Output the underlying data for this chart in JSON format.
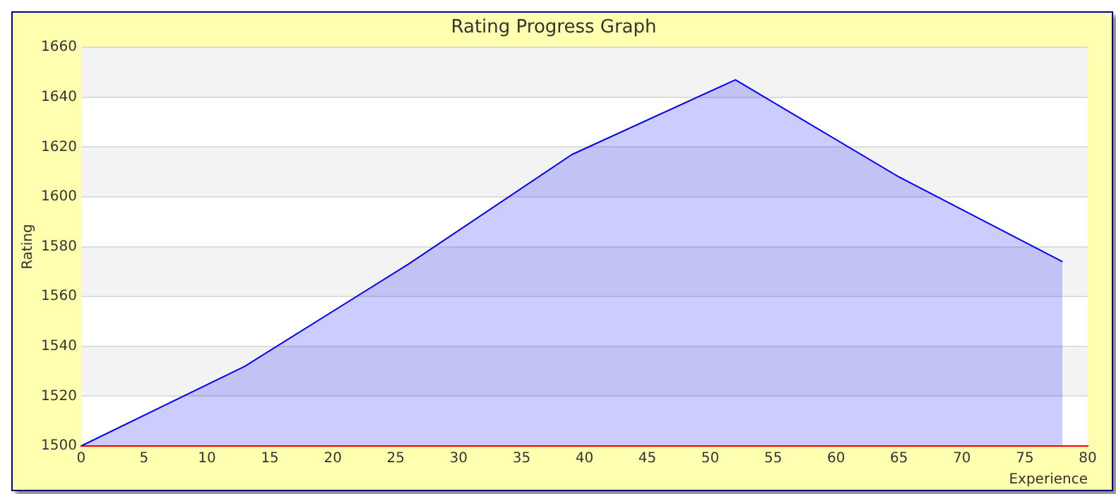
{
  "chart_data": {
    "type": "area",
    "title": "Rating Progress Graph",
    "xlabel": "Experience",
    "ylabel": "Rating",
    "x": [
      0,
      13,
      26,
      39,
      52,
      65,
      78
    ],
    "series": [
      {
        "color": "#0000ff",
        "values": [
          1500,
          1532,
          1573,
          1617,
          1647,
          1608,
          1574
        ]
      }
    ],
    "xlim": [
      0,
      80
    ],
    "xticks": [
      0,
      5,
      10,
      15,
      20,
      25,
      30,
      35,
      40,
      45,
      50,
      55,
      60,
      65,
      70,
      75,
      80
    ],
    "ylim": [
      1500,
      1660
    ],
    "yticks": [
      1500,
      1520,
      1540,
      1560,
      1580,
      1600,
      1620,
      1640,
      1660
    ],
    "grid": "y",
    "legend": false,
    "marker": "none"
  }
}
